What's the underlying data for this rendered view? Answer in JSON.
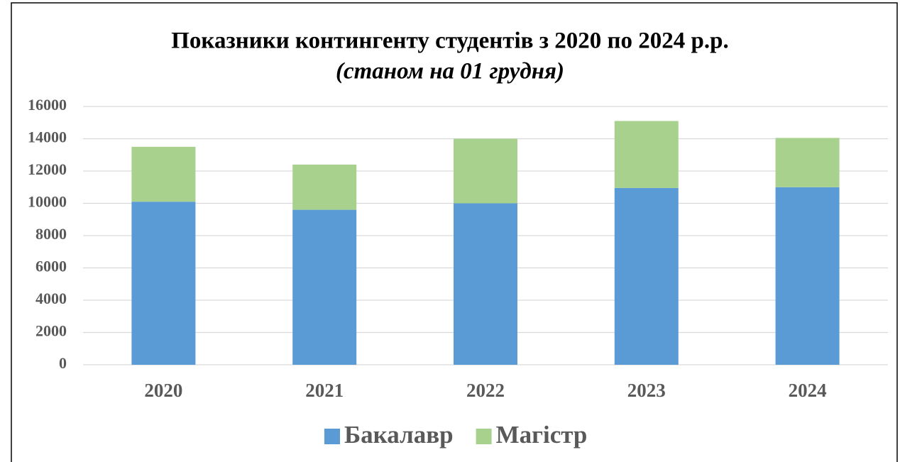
{
  "chart_data": {
    "type": "stacked_bar",
    "title": "Показники контингенту студентів з 2020 по 2024 р.р.",
    "subtitle": "(станом на 01 грудня)",
    "categories": [
      "2020",
      "2021",
      "2022",
      "2023",
      "2024"
    ],
    "series": [
      {
        "name": "Бакалавр",
        "color": "#5b9bd5",
        "values": [
          10100,
          9600,
          10000,
          10950,
          11000
        ]
      },
      {
        "name": "Магістр",
        "color": "#a9d18e",
        "values": [
          3400,
          2800,
          4000,
          4150,
          3050
        ]
      }
    ],
    "ylim": [
      0,
      16000
    ],
    "yticks": [
      0,
      2000,
      4000,
      6000,
      8000,
      10000,
      12000,
      14000,
      16000
    ],
    "grid": true,
    "legend": "bottom"
  }
}
